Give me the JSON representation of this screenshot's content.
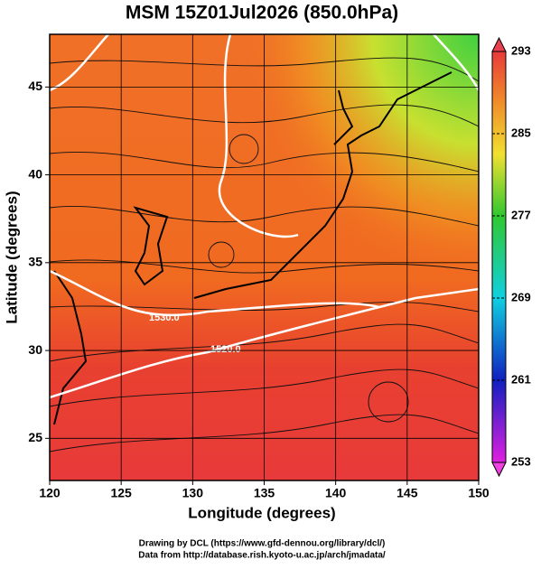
{
  "title": "MSM 15Z01Jul2026 (850.0hPa)",
  "chart_data": {
    "type": "map",
    "xlabel": "Longitude (degrees)",
    "ylabel": "Latitude  (degrees)",
    "xlim": [
      120,
      150
    ],
    "ylim": [
      22.6,
      48
    ],
    "xticks": [
      120,
      125,
      130,
      135,
      140,
      145,
      150
    ],
    "yticks": [
      25,
      30,
      35,
      40,
      45
    ],
    "grid": true,
    "colorbar": {
      "lim": [
        253,
        293
      ],
      "ticks": [
        293,
        285,
        277,
        269,
        261,
        253
      ]
    },
    "contour_labels": [
      "1530.0",
      "1520.0"
    ]
  },
  "footer": [
    "Drawing by DCL (https://www.gfd-dennou.org/library/dcl/)",
    "Data from http://database.rish.kyoto-u.ac.jp/arch/jmadata/"
  ]
}
